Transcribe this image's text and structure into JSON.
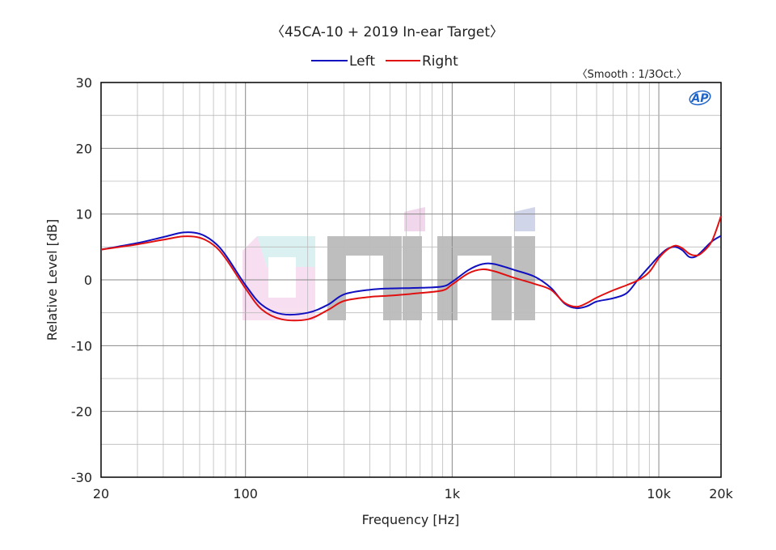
{
  "chart_data": {
    "type": "line",
    "title": "〈45CA-10 + 2019 In-ear Target〉",
    "subtitle": "〈Smooth : 1/3Oct.〉",
    "logo_text": "AP",
    "watermark_text": "eiri",
    "xlabel": "Frequency [Hz]",
    "ylabel": "Relative Level [dB]",
    "x_scale": "log",
    "xlim": [
      20,
      20000
    ],
    "ylim": [
      -30,
      30
    ],
    "x_ticks": [
      {
        "value": 20,
        "label": "20"
      },
      {
        "value": 100,
        "label": "100"
      },
      {
        "value": 1000,
        "label": "1k"
      },
      {
        "value": 10000,
        "label": "10k"
      },
      {
        "value": 20000,
        "label": "20k"
      }
    ],
    "y_ticks": [
      {
        "value": 30,
        "label": "30"
      },
      {
        "value": 20,
        "label": "20"
      },
      {
        "value": 10,
        "label": "10"
      },
      {
        "value": 0,
        "label": "0"
      },
      {
        "value": -10,
        "label": "-10"
      },
      {
        "value": -20,
        "label": "-20"
      },
      {
        "value": -30,
        "label": "-30"
      }
    ],
    "grid": true,
    "legend_position": "top-center",
    "colors": {
      "left": "#1010c0",
      "right": "#e01010",
      "grid": "#bbbbbb",
      "major_grid": "#888888"
    },
    "series": [
      {
        "name": "Left",
        "color": "#1010c0",
        "x": [
          20,
          30,
          40,
          50,
          60,
          70,
          80,
          100,
          120,
          150,
          200,
          250,
          300,
          400,
          500,
          700,
          900,
          1000,
          1200,
          1400,
          1600,
          2000,
          2500,
          3000,
          3500,
          4000,
          4500,
          5000,
          6000,
          7000,
          8000,
          9000,
          10000,
          11000,
          12000,
          13000,
          14000,
          15000,
          16000,
          18000,
          20000
        ],
        "y": [
          4.6,
          5.6,
          6.5,
          7.2,
          7.0,
          5.8,
          3.8,
          -0.8,
          -3.8,
          -5.2,
          -5.0,
          -3.8,
          -2.2,
          -1.5,
          -1.3,
          -1.2,
          -1.0,
          -0.3,
          1.5,
          2.4,
          2.4,
          1.5,
          0.5,
          -1.2,
          -3.6,
          -4.3,
          -4.0,
          -3.3,
          -2.8,
          -2.0,
          0.2,
          2.0,
          3.6,
          4.7,
          5.0,
          4.5,
          3.5,
          3.5,
          4.2,
          5.8,
          6.7
        ]
      },
      {
        "name": "Right",
        "color": "#e01010",
        "x": [
          20,
          30,
          40,
          50,
          60,
          70,
          80,
          100,
          120,
          150,
          200,
          250,
          300,
          400,
          500,
          700,
          900,
          1000,
          1200,
          1400,
          1600,
          2000,
          2500,
          3000,
          3500,
          4000,
          4500,
          5000,
          6000,
          7000,
          8000,
          9000,
          10000,
          11000,
          12000,
          13000,
          14000,
          15000,
          16000,
          18000,
          20000
        ],
        "y": [
          4.6,
          5.4,
          6.1,
          6.6,
          6.4,
          5.3,
          3.3,
          -1.3,
          -4.5,
          -6.0,
          -6.0,
          -4.6,
          -3.2,
          -2.6,
          -2.4,
          -2.0,
          -1.6,
          -0.7,
          1.0,
          1.6,
          1.3,
          0.3,
          -0.6,
          -1.5,
          -3.5,
          -4.1,
          -3.5,
          -2.7,
          -1.6,
          -0.8,
          0.0,
          1.2,
          3.3,
          4.6,
          5.2,
          4.8,
          4.0,
          3.7,
          4.0,
          5.8,
          9.7
        ]
      }
    ]
  }
}
